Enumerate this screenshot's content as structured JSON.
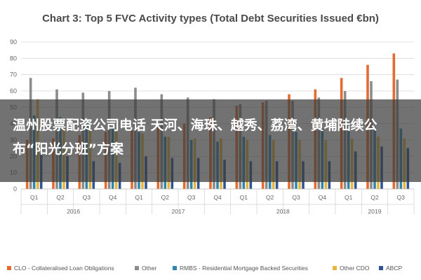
{
  "chart_data": {
    "type": "bar",
    "title": "Chart 3: Top 5 FVC Activity types (Total Debt Securities Issued €bn)",
    "ylim": [
      0,
      90
    ],
    "yticks": [
      0,
      10,
      20,
      30,
      40,
      50,
      60,
      70,
      80,
      90
    ],
    "grid": true,
    "legend_position": "bottom",
    "categories": [
      "Q1",
      "Q2",
      "Q3",
      "Q4",
      "Q1",
      "Q2",
      "Q3",
      "Q4",
      "Q1",
      "Q2",
      "Q3",
      "Q4",
      "Q1",
      "Q2",
      "Q3"
    ],
    "year_groups": [
      {
        "label": "2016",
        "start": 0,
        "end": 3
      },
      {
        "label": "2017",
        "start": 4,
        "end": 7
      },
      {
        "label": "2018",
        "start": 8,
        "end": 11
      },
      {
        "label": "2019",
        "start": 12,
        "end": 14
      }
    ],
    "series": [
      {
        "name": "CLO - Collateralised Loan Obligations",
        "color": "#e36c2e",
        "values": [
          30,
          31,
          33,
          35,
          36,
          38,
          40,
          44,
          51,
          53,
          58,
          61,
          68,
          76,
          83
        ]
      },
      {
        "name": "Other",
        "color": "#8c8c8c",
        "values": [
          68,
          61,
          59,
          60,
          62,
          58,
          56,
          55,
          52,
          54,
          54,
          56,
          60,
          66,
          67
        ]
      },
      {
        "name": "RMBS - Residential Mortgage Backed Securities",
        "color": "#2e86ab",
        "values": [
          45,
          44,
          40,
          38,
          35,
          32,
          30,
          29,
          32,
          33,
          35,
          37,
          39,
          38,
          37
        ]
      },
      {
        "name": "Other CDO",
        "color": "#e8b53a",
        "values": [
          55,
          38,
          37,
          36,
          34,
          32,
          31,
          31,
          30,
          30,
          30,
          30,
          31,
          32,
          31
        ]
      },
      {
        "name": "ABCP",
        "color": "#2f5597",
        "values": [
          22,
          20,
          17,
          16,
          20,
          19,
          19,
          18,
          17,
          17,
          17,
          17,
          23,
          26,
          25
        ]
      }
    ]
  },
  "overlay": {
    "text": "温州股票配资公司电话 天河、海珠、越秀、荔湾、黄埔陆续公布“阳光分班”方案"
  }
}
